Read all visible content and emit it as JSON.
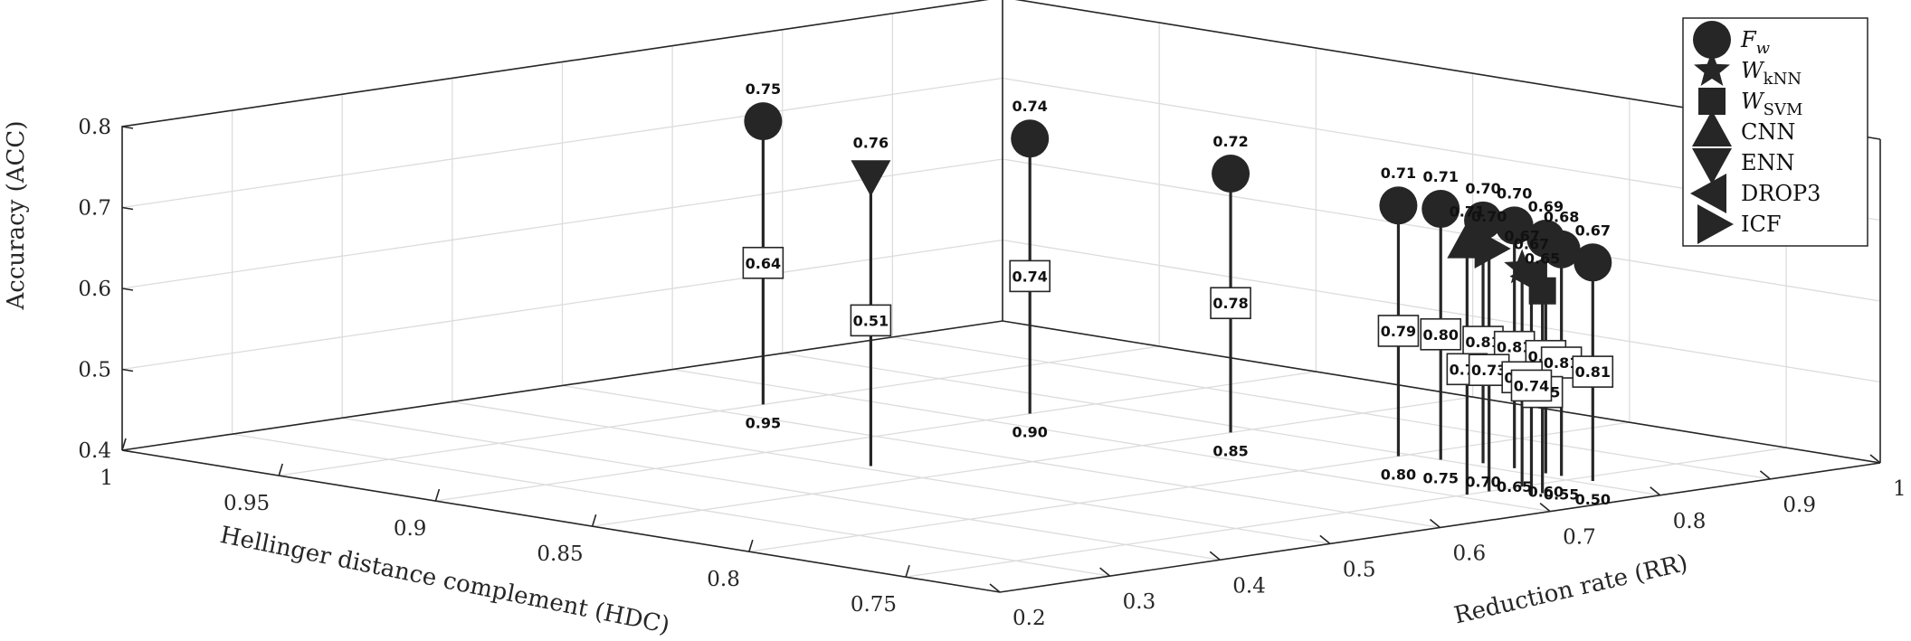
{
  "chart_data": {
    "type": "scatter3d-stem",
    "zlabel": "Accuracy (ACC)",
    "xlabel": "Hellinger distance complement (HDC)",
    "ylabel": "Reduction rate (RR)",
    "zlim": [
      0.4,
      0.8
    ],
    "xlim": [
      0.72,
      1.0
    ],
    "ylim": [
      0.2,
      1.0
    ],
    "zticks": [
      "0.4",
      "0.5",
      "0.6",
      "0.7",
      "0.8"
    ],
    "xticks": [
      "1",
      "0.95",
      "0.9",
      "0.85",
      "0.8",
      "0.75"
    ],
    "yticks": [
      "0.2",
      "0.3",
      "0.4",
      "0.5",
      "0.6",
      "0.7",
      "0.8",
      "0.9",
      "1"
    ],
    "grid": true,
    "legend_position": "top-right",
    "legend": [
      {
        "symbol": "circle",
        "label": "F",
        "sub": "w"
      },
      {
        "symbol": "star",
        "label": "W",
        "sub": "kNN"
      },
      {
        "symbol": "square",
        "label": "W",
        "sub": "SVM"
      },
      {
        "symbol": "triangle-up",
        "label": "CNN",
        "sub": ""
      },
      {
        "symbol": "triangle-down",
        "label": "ENN",
        "sub": ""
      },
      {
        "symbol": "triangle-left",
        "label": "DROP3",
        "sub": ""
      },
      {
        "symbol": "triangle-right",
        "label": "ICF",
        "sub": ""
      }
    ],
    "points": [
      {
        "series": "Fw",
        "marker": "circle",
        "param": "0.95",
        "acc_label": "0.75",
        "hdc": 0.95,
        "rr": 0.64,
        "acc": 0.75,
        "rr_label": "0.64"
      },
      {
        "series": "Fw",
        "marker": "circle",
        "param": "0.90",
        "acc_label": "0.74",
        "hdc": 0.9,
        "rr": 0.74,
        "acc": 0.74,
        "rr_label": "0.74"
      },
      {
        "series": "Fw",
        "marker": "circle",
        "param": "0.85",
        "acc_label": "0.72",
        "hdc": 0.85,
        "rr": 0.78,
        "acc": 0.72,
        "rr_label": "0.78"
      },
      {
        "series": "Fw",
        "marker": "circle",
        "param": "0.80",
        "acc_label": "0.71",
        "hdc": 0.8,
        "rr": 0.79,
        "acc": 0.71,
        "rr_label": "0.79"
      },
      {
        "series": "Fw",
        "marker": "circle",
        "param": "0.75",
        "acc_label": "0.71",
        "hdc": 0.79,
        "rr": 0.8,
        "acc": 0.71,
        "rr_label": "0.80"
      },
      {
        "series": "Fw",
        "marker": "circle",
        "param": "0.70",
        "acc_label": "0.70",
        "hdc": 0.78,
        "rr": 0.81,
        "acc": 0.7,
        "rr_label": "0.81"
      },
      {
        "series": "Fw",
        "marker": "circle",
        "param": "0.65",
        "acc_label": "0.70",
        "hdc": 0.77,
        "rr": 0.81,
        "acc": 0.7,
        "rr_label": "0.81"
      },
      {
        "series": "Fw",
        "marker": "circle",
        "param": "0.60",
        "acc_label": "0.69",
        "hdc": 0.76,
        "rr": 0.81,
        "acc": 0.69,
        "rr_label": "0.81"
      },
      {
        "series": "Fw",
        "marker": "circle",
        "param": "0.55",
        "acc_label": "0.68",
        "hdc": 0.755,
        "rr": 0.81,
        "acc": 0.68,
        "rr_label": "0.81"
      },
      {
        "series": "Fw",
        "marker": "circle",
        "param": "0.50",
        "acc_label": "0.67",
        "hdc": 0.745,
        "rr": 0.81,
        "acc": 0.67,
        "rr_label": "0.81"
      },
      {
        "series": "ENN",
        "marker": "triangle-down",
        "param": "",
        "acc_label": "0.76",
        "hdc": 0.87,
        "rr": 0.51,
        "acc": 0.76,
        "rr_label": "0.51"
      },
      {
        "series": "CNN",
        "marker": "triangle-up",
        "param": "",
        "acc_label": "0.71",
        "hdc": 0.75,
        "rr": 0.71,
        "acc": 0.71,
        "rr_label": "0.71"
      },
      {
        "series": "ICF",
        "marker": "triangle-right",
        "param": "",
        "acc_label": "0.70",
        "hdc": 0.75,
        "rr": 0.73,
        "acc": 0.7,
        "rr_label": "0.73"
      },
      {
        "series": "WkNN",
        "marker": "star",
        "param": "",
        "acc_label": "0.67",
        "hdc": 0.75,
        "rr": 0.76,
        "acc": 0.67,
        "rr_label": "0.76"
      },
      {
        "series": "WSVM",
        "marker": "square",
        "param": "",
        "acc_label": "0.65",
        "hdc": 0.74,
        "rr": 0.75,
        "acc": 0.65,
        "rr_label": "0.75"
      },
      {
        "series": "DROP3",
        "marker": "triangle-left",
        "param": "",
        "acc_label": "0.67",
        "hdc": 0.74,
        "rr": 0.74,
        "acc": 0.67,
        "rr_label": "0.74"
      }
    ]
  }
}
